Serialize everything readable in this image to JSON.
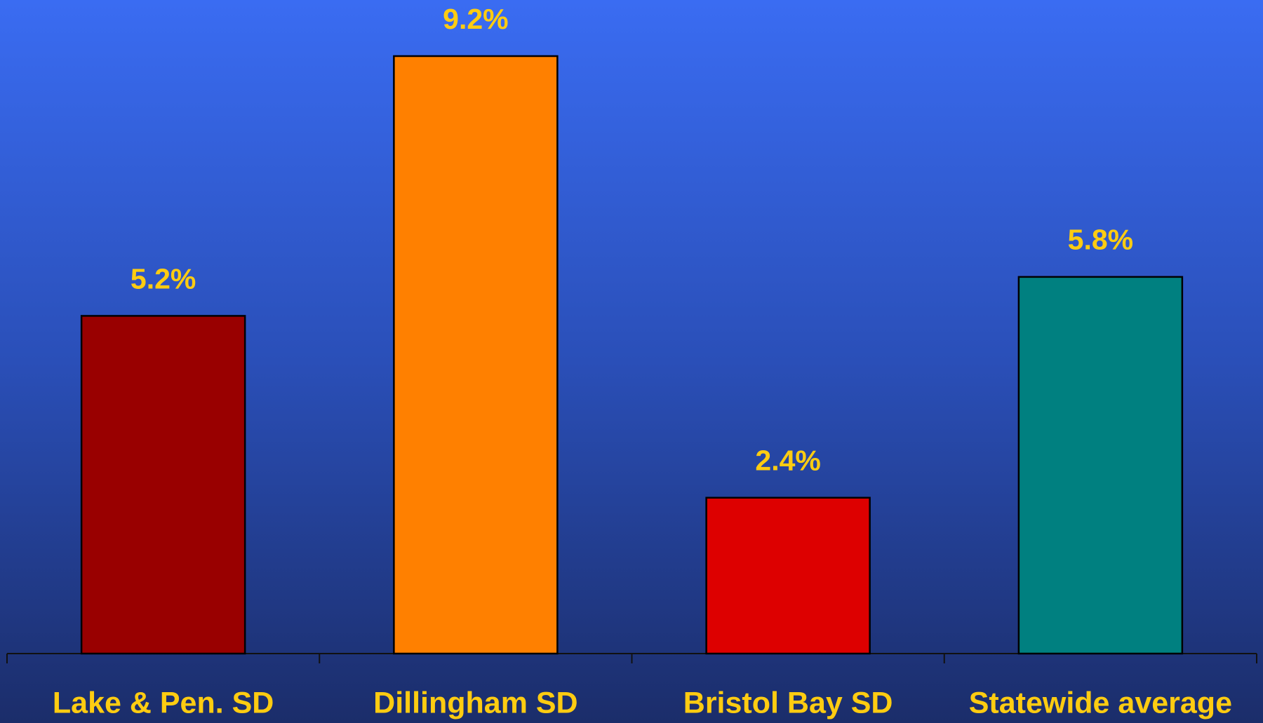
{
  "chart_data": {
    "type": "bar",
    "categories": [
      "Lake & Pen. SD",
      "Dillingham SD",
      "Bristol Bay SD",
      "Statewide average"
    ],
    "values": [
      5.2,
      9.2,
      2.4,
      5.8
    ],
    "value_labels": [
      "5.2%",
      "9.2%",
      "2.4%",
      "5.8%"
    ],
    "colors": [
      "#990000",
      "#ff8000",
      "#dd0000",
      "#008080"
    ]
  }
}
